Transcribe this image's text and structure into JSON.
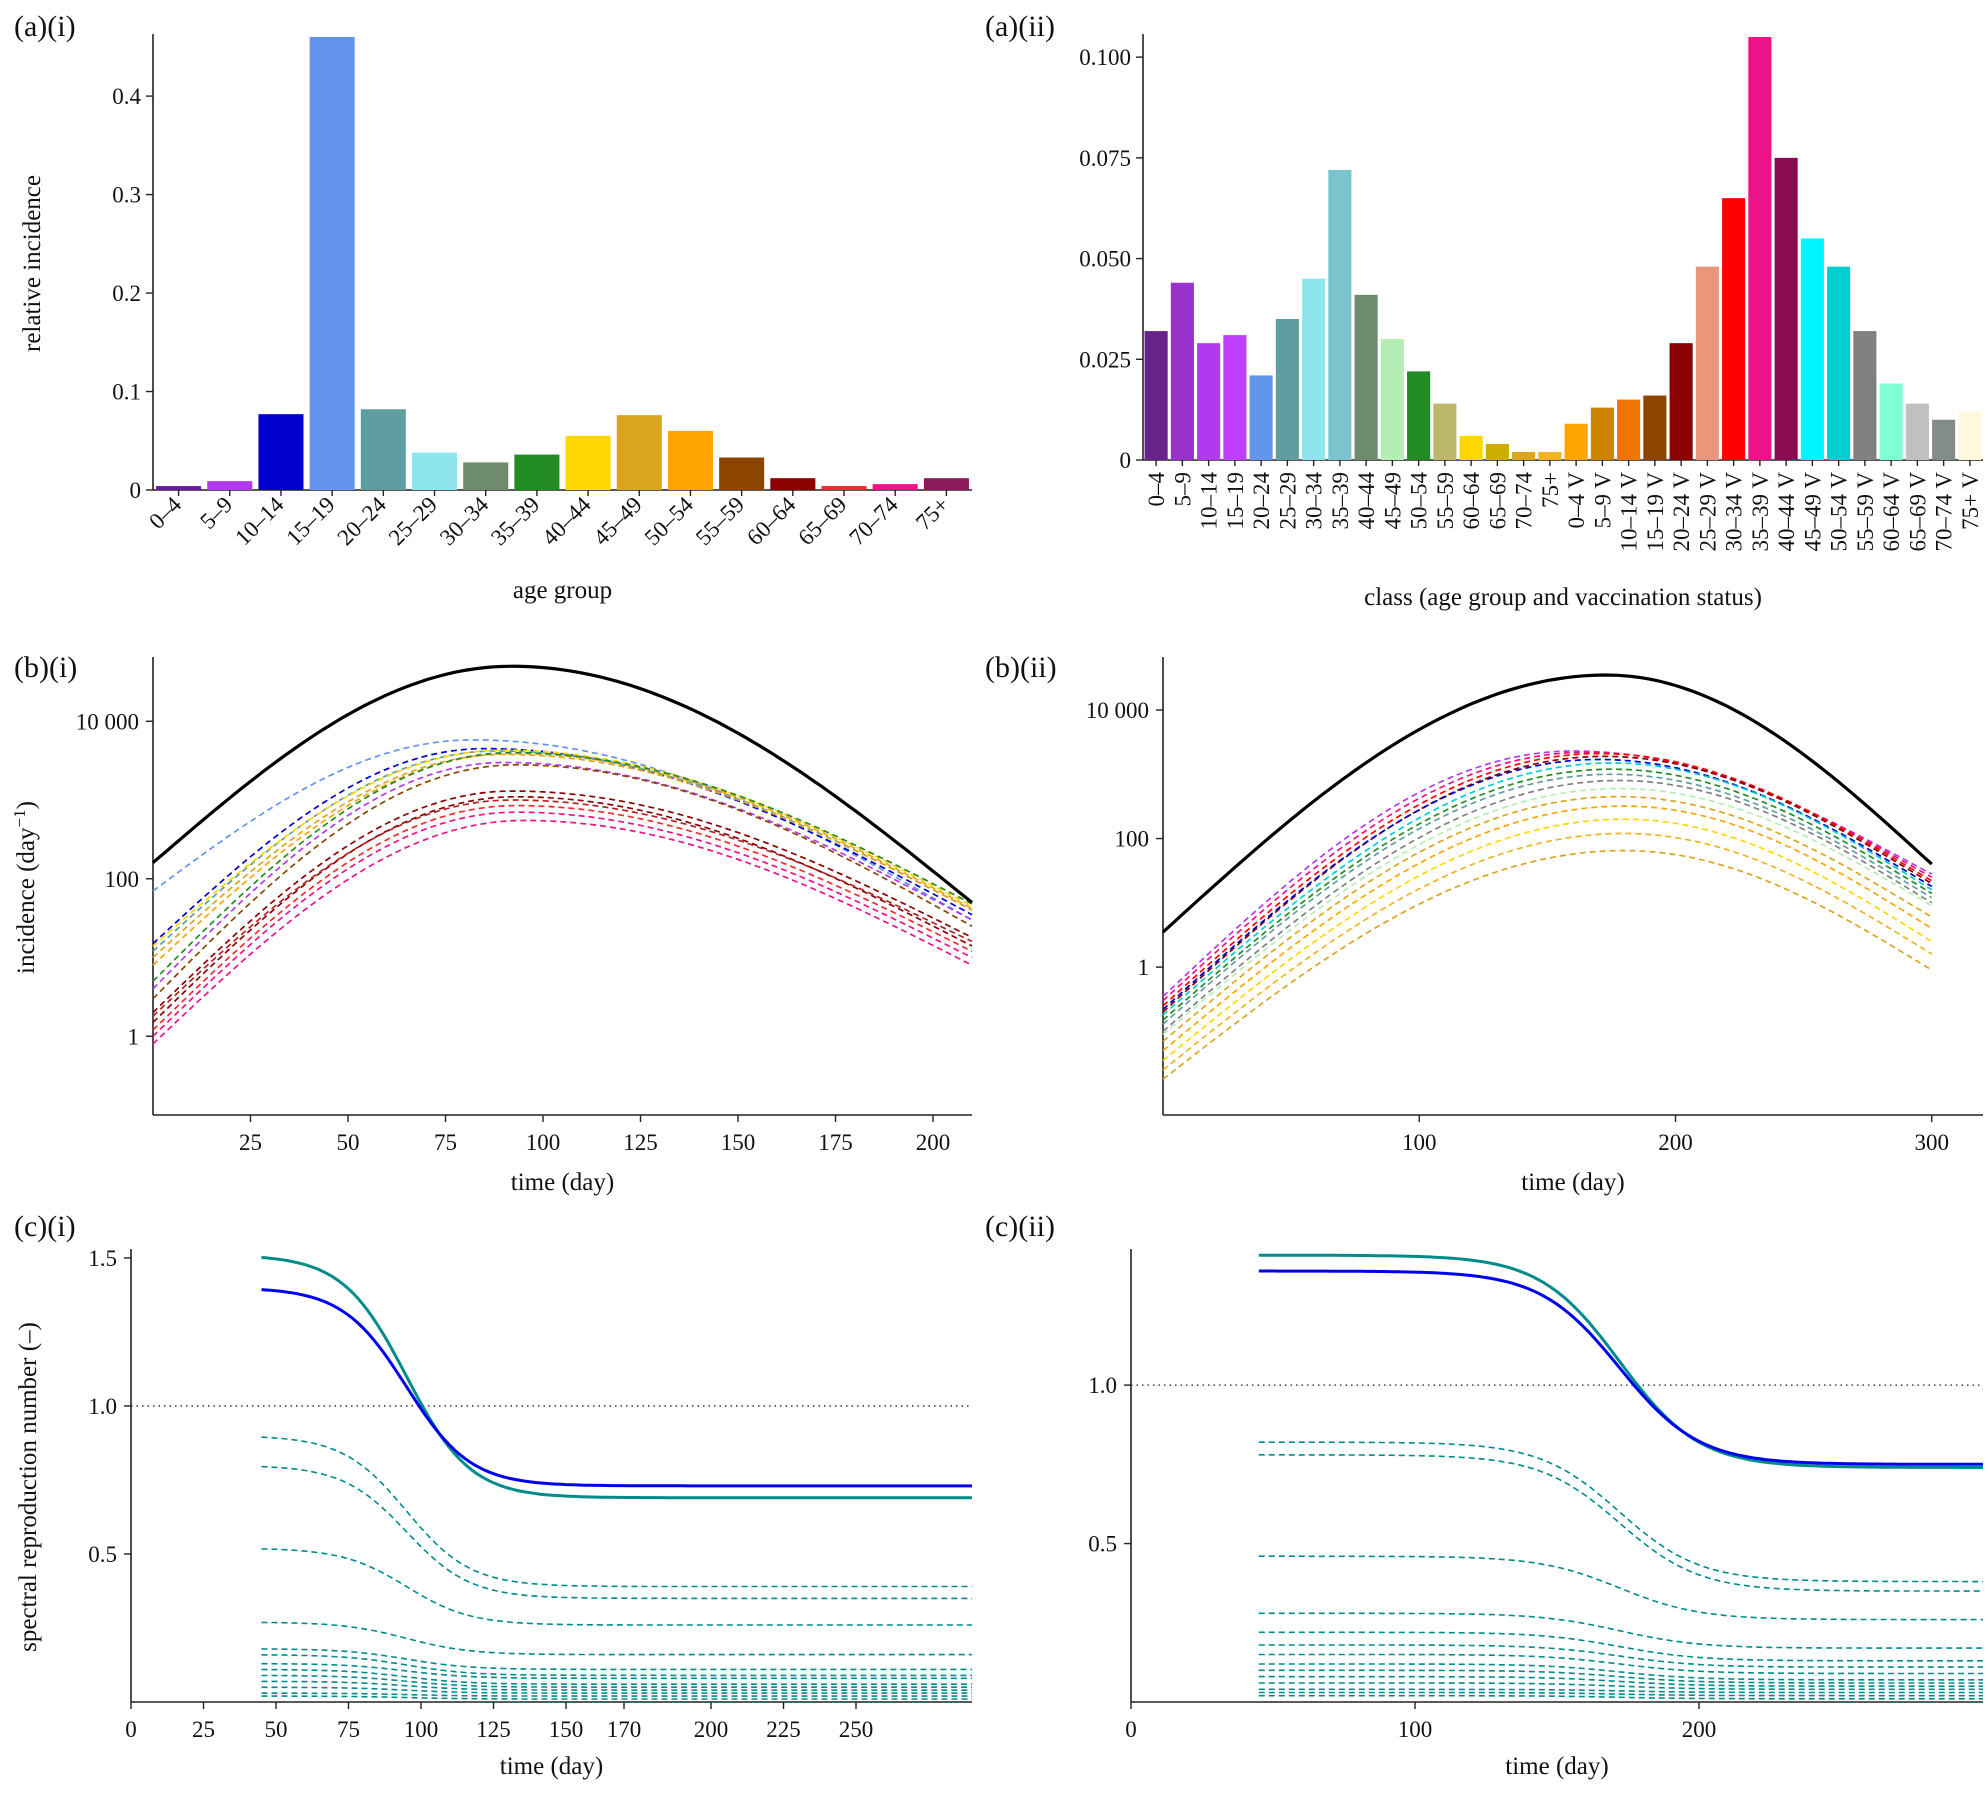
{
  "panels": {
    "a_i": {
      "label": "(a)(i)"
    },
    "a_ii": {
      "label": "(a)(ii)"
    },
    "b_i": {
      "label": "(b)(i)"
    },
    "b_ii": {
      "label": "(b)(ii)"
    },
    "c_i": {
      "label": "(c)(i)"
    },
    "c_ii": {
      "label": "(c)(ii)"
    }
  },
  "chart_data": [
    {
      "id": "a_i",
      "type": "bar",
      "title": "",
      "xlabel": "age group",
      "ylabel": "relative incidence",
      "ylim": [
        0,
        0.46
      ],
      "yticks": [
        0,
        0.1,
        0.2,
        0.3,
        0.4
      ],
      "ytick_labels": [
        "0",
        "0.1",
        "0.2",
        "0.3",
        "0.4"
      ],
      "categories": [
        "0–4",
        "5–9",
        "10–14",
        "15–19",
        "20–24",
        "25–29",
        "30–34",
        "35–39",
        "40–44",
        "45–49",
        "50–54",
        "55–59",
        "60–64",
        "65–69",
        "70–74",
        "75+"
      ],
      "values": [
        0.004,
        0.009,
        0.077,
        0.46,
        0.082,
        0.038,
        0.028,
        0.036,
        0.055,
        0.076,
        0.06,
        0.033,
        0.012,
        0.004,
        0.006,
        0.012
      ],
      "colors": [
        "#6a1b9a",
        "#b23aee",
        "#0000cd",
        "#6495ed",
        "#5f9ea0",
        "#8ee5ee",
        "#6e8b6e",
        "#228b22",
        "#ffd700",
        "#daa520",
        "#ffa500",
        "#8b4500",
        "#8b0000",
        "#ee2c2c",
        "#ee1289",
        "#8b1a5a"
      ]
    },
    {
      "id": "a_ii",
      "type": "bar",
      "title": "",
      "xlabel": "class (age group and vaccination status)",
      "ylabel": "",
      "ylim": [
        0,
        0.105
      ],
      "yticks": [
        0,
        0.025,
        0.05,
        0.075,
        0.1
      ],
      "ytick_labels": [
        "0",
        "0.025",
        "0.050",
        "0.075",
        "0.100"
      ],
      "categories": [
        "0–4",
        "5–9",
        "10–14",
        "15–19",
        "20–24",
        "25–29",
        "30–34",
        "35–39",
        "40–44",
        "45–49",
        "50–54",
        "55–59",
        "60–64",
        "65–69",
        "70–74",
        "75+",
        "0–4 V",
        "5–9 V",
        "10–14 V",
        "15–19 V",
        "20–24 V",
        "25–29 V",
        "30–34 V",
        "35–39 V",
        "40–44 V",
        "45–49 V",
        "50–54 V",
        "55–59 V",
        "60–64 V",
        "65–69 V",
        "70–74 V",
        "75+ V"
      ],
      "values": [
        0.032,
        0.044,
        0.029,
        0.031,
        0.021,
        0.035,
        0.045,
        0.072,
        0.041,
        0.03,
        0.022,
        0.014,
        0.006,
        0.004,
        0.002,
        0.002,
        0.009,
        0.013,
        0.015,
        0.016,
        0.029,
        0.048,
        0.065,
        0.105,
        0.075,
        0.055,
        0.048,
        0.032,
        0.019,
        0.014,
        0.01,
        0.012
      ],
      "colors": [
        "#68228b",
        "#9932cc",
        "#b23aee",
        "#bf3eff",
        "#6495ed",
        "#5f9ea0",
        "#8ee5ee",
        "#7ac5cd",
        "#6e8b6e",
        "#b4eeb4",
        "#228b22",
        "#bdb76b",
        "#ffd700",
        "#cdad00",
        "#daa520",
        "#eeb422",
        "#ffa500",
        "#cd8500",
        "#ee7600",
        "#8b4500",
        "#8b0000",
        "#e9967a",
        "#ff0000",
        "#ee1289",
        "#8b0a50",
        "#00f5ff",
        "#00ced1",
        "#808080",
        "#7fffd4",
        "#c0c0c0",
        "#838b8b",
        "#fff8dc"
      ]
    },
    {
      "id": "b_i",
      "type": "line",
      "title": "",
      "xlabel": "time (day)",
      "ylabel": "incidence (day⁻¹)",
      "ylabel_main": "incidence (day",
      "ylabel_sup": "−1",
      "ylabel_end": ")",
      "y_scale": "log",
      "xlim": [
        0,
        210
      ],
      "ylim": [
        0.1,
        60000
      ],
      "xticks": [
        25,
        50,
        75,
        100,
        125,
        150,
        175,
        200
      ],
      "xtick_labels": [
        "25",
        "50",
        "75",
        "100",
        "125",
        "150",
        "175",
        "200"
      ],
      "yticks": [
        1,
        100,
        10000
      ],
      "ytick_labels": [
        "1",
        "100",
        "10 000"
      ],
      "total": {
        "peak_day": 92,
        "peak": 50000,
        "start": 160,
        "end": 50,
        "color": "#000000"
      },
      "series": [
        {
          "color": "#6495ed",
          "start": 70,
          "peak_day": 82,
          "peak": 5800,
          "end": 30
        },
        {
          "color": "#0000cd",
          "start": 15,
          "peak_day": 85,
          "peak": 4500,
          "end": 35
        },
        {
          "color": "#5f9ea0",
          "start": 12,
          "peak_day": 88,
          "peak": 4200,
          "end": 40
        },
        {
          "color": "#ffd700",
          "start": 14,
          "peak_day": 90,
          "peak": 4300,
          "end": 45
        },
        {
          "color": "#daa520",
          "start": 10,
          "peak_day": 90,
          "peak": 3800,
          "end": 40
        },
        {
          "color": "#ffa500",
          "start": 8,
          "peak_day": 92,
          "peak": 3900,
          "end": 42
        },
        {
          "color": "#228b22",
          "start": 5,
          "peak_day": 92,
          "peak": 4000,
          "end": 48
        },
        {
          "color": "#b23aee",
          "start": 4,
          "peak_day": 90,
          "peak": 3000,
          "end": 30
        },
        {
          "color": "#8b4500",
          "start": 3,
          "peak_day": 93,
          "peak": 2800,
          "end": 25
        },
        {
          "color": "#8b0000",
          "start": 2,
          "peak_day": 92,
          "peak": 1300,
          "end": 18
        },
        {
          "color": "#8b0000",
          "start": 1.5,
          "peak_day": 93,
          "peak": 1100,
          "end": 14
        },
        {
          "color": "#b22222",
          "start": 1.8,
          "peak_day": 92,
          "peak": 1000,
          "end": 16
        },
        {
          "color": "#ee2c2c",
          "start": 1.2,
          "peak_day": 93,
          "peak": 850,
          "end": 12
        },
        {
          "color": "#ee1289",
          "start": 1,
          "peak_day": 93,
          "peak": 700,
          "end": 10
        },
        {
          "color": "#ee1289",
          "start": 0.8,
          "peak_day": 95,
          "peak": 550,
          "end": 8
        }
      ]
    },
    {
      "id": "b_ii",
      "type": "line",
      "title": "",
      "xlabel": "time (day)",
      "ylabel": "",
      "y_scale": "log",
      "xlim": [
        0,
        320
      ],
      "ylim": [
        0.005,
        60000
      ],
      "xticks": [
        100,
        200,
        300
      ],
      "xtick_labels": [
        "100",
        "200",
        "300"
      ],
      "yticks": [
        1,
        100,
        10000
      ],
      "ytick_labels": [
        "1",
        "100",
        "10 000"
      ],
      "total": {
        "peak_day": 173,
        "peak": 35000,
        "start": 3.5,
        "end": 40,
        "color": "#000000"
      },
      "series": [
        {
          "color": "#b23aee",
          "start": 0.35,
          "peak_day": 160,
          "peak": 2300,
          "end": 28
        },
        {
          "color": "#ee1289",
          "start": 0.3,
          "peak_day": 165,
          "peak": 2200,
          "end": 25
        },
        {
          "color": "#ff0000",
          "start": 0.25,
          "peak_day": 170,
          "peak": 2100,
          "end": 22
        },
        {
          "color": "#8b0000",
          "start": 0.2,
          "peak_day": 172,
          "peak": 1900,
          "end": 20
        },
        {
          "color": "#0000cd",
          "start": 0.22,
          "peak_day": 170,
          "peak": 1700,
          "end": 18
        },
        {
          "color": "#00ced1",
          "start": 0.18,
          "peak_day": 175,
          "peak": 1500,
          "end": 16
        },
        {
          "color": "#228b22",
          "start": 0.15,
          "peak_day": 175,
          "peak": 1200,
          "end": 14
        },
        {
          "color": "#5f9ea0",
          "start": 0.13,
          "peak_day": 175,
          "peak": 1000,
          "end": 12
        },
        {
          "color": "#808080",
          "start": 0.1,
          "peak_day": 178,
          "peak": 800,
          "end": 10
        },
        {
          "color": "#b4eeb4",
          "start": 0.09,
          "peak_day": 178,
          "peak": 600,
          "end": 9
        },
        {
          "color": "#daa520",
          "start": 0.07,
          "peak_day": 178,
          "peak": 450,
          "end": 6
        },
        {
          "color": "#ffa500",
          "start": 0.05,
          "peak_day": 180,
          "peak": 320,
          "end": 4
        },
        {
          "color": "#ffd700",
          "start": 0.035,
          "peak_day": 180,
          "peak": 200,
          "end": 2.5
        },
        {
          "color": "#eeb422",
          "start": 0.025,
          "peak_day": 180,
          "peak": 120,
          "end": 1.6
        },
        {
          "color": "#daa520",
          "start": 0.018,
          "peak_day": 180,
          "peak": 65,
          "end": 0.9
        }
      ]
    },
    {
      "id": "c_i",
      "type": "line",
      "title": "",
      "xlabel": "time (day)",
      "ylabel": "spectral reproduction number (–)",
      "xlim": [
        0,
        290
      ],
      "ylim": [
        0,
        1.52
      ],
      "xticks": [
        0,
        25,
        50,
        75,
        100,
        125,
        150,
        170,
        200,
        225,
        250
      ],
      "xtick_labels": [
        "0",
        "25",
        "50",
        "75",
        "100",
        "125",
        "150",
        "170",
        "200",
        "225",
        "250"
      ],
      "yticks": [
        0.5,
        1.0,
        1.5
      ],
      "ytick_labels": [
        "0.5",
        "1.0",
        "1.5"
      ],
      "reference_line": 1.0,
      "t_start": 45,
      "transition_mid": 95,
      "transition_width": 11,
      "solid_series": [
        {
          "color": "#008b8b",
          "start": 1.51,
          "end": 0.69
        },
        {
          "color": "#0000ee",
          "start": 1.4,
          "end": 0.73
        }
      ],
      "dashed_series": [
        {
          "color": "#008b8b",
          "start": 0.9,
          "end": 0.39
        },
        {
          "color": "#008b8b",
          "start": 0.8,
          "end": 0.35
        },
        {
          "color": "#008b8b",
          "start": 0.52,
          "end": 0.26
        },
        {
          "color": "#008b8b",
          "start": 0.27,
          "end": 0.16
        },
        {
          "color": "#008b8b",
          "start": 0.18,
          "end": 0.11
        },
        {
          "color": "#008b8b",
          "start": 0.16,
          "end": 0.09
        },
        {
          "color": "#008b8b",
          "start": 0.13,
          "end": 0.08
        },
        {
          "color": "#008b8b",
          "start": 0.11,
          "end": 0.06
        },
        {
          "color": "#008b8b",
          "start": 0.09,
          "end": 0.05
        },
        {
          "color": "#008b8b",
          "start": 0.07,
          "end": 0.04
        },
        {
          "color": "#008b8b",
          "start": 0.05,
          "end": 0.03
        },
        {
          "color": "#008b8b",
          "start": 0.03,
          "end": 0.02
        },
        {
          "color": "#008b8b",
          "start": 0.02,
          "end": 0.01
        }
      ]
    },
    {
      "id": "c_ii",
      "type": "line",
      "title": "",
      "xlabel": "time (day)",
      "ylabel": "",
      "xlim": [
        0,
        300
      ],
      "ylim": [
        0,
        1.42
      ],
      "xticks": [
        0,
        100,
        200
      ],
      "xtick_labels": [
        "0",
        "100",
        "200"
      ],
      "yticks": [
        0.5,
        1.0
      ],
      "ytick_labels": [
        "0.5",
        "1.0"
      ],
      "reference_line": 1.0,
      "t_start": 45,
      "transition_mid": 172,
      "transition_width": 14,
      "solid_series": [
        {
          "color": "#008b8b",
          "start": 1.41,
          "end": 0.74
        },
        {
          "color": "#0000ee",
          "start": 1.36,
          "end": 0.75
        }
      ],
      "dashed_series": [
        {
          "color": "#008b8b",
          "start": 0.82,
          "end": 0.38
        },
        {
          "color": "#008b8b",
          "start": 0.78,
          "end": 0.35
        },
        {
          "color": "#008b8b",
          "start": 0.46,
          "end": 0.26
        },
        {
          "color": "#008b8b",
          "start": 0.28,
          "end": 0.17
        },
        {
          "color": "#008b8b",
          "start": 0.22,
          "end": 0.13
        },
        {
          "color": "#008b8b",
          "start": 0.18,
          "end": 0.11
        },
        {
          "color": "#008b8b",
          "start": 0.15,
          "end": 0.09
        },
        {
          "color": "#008b8b",
          "start": 0.12,
          "end": 0.07
        },
        {
          "color": "#008b8b",
          "start": 0.1,
          "end": 0.06
        },
        {
          "color": "#008b8b",
          "start": 0.08,
          "end": 0.05
        },
        {
          "color": "#008b8b",
          "start": 0.06,
          "end": 0.04
        },
        {
          "color": "#008b8b",
          "start": 0.04,
          "end": 0.03
        },
        {
          "color": "#008b8b",
          "start": 0.03,
          "end": 0.02
        },
        {
          "color": "#008b8b",
          "start": 0.02,
          "end": 0.01
        }
      ]
    }
  ]
}
